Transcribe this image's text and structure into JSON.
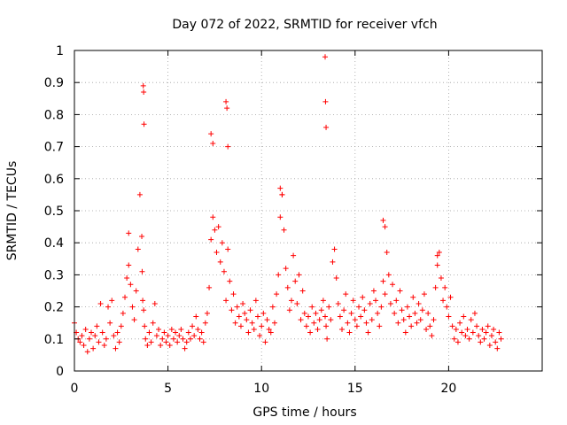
{
  "chart_data": {
    "type": "scatter",
    "title": "Day 072 of 2022, SRMTID for receiver vfch",
    "xlabel": "GPS time / hours",
    "ylabel": "SRMTID / TECUs",
    "xlim": [
      0,
      25
    ],
    "ylim": [
      0,
      1
    ],
    "xticks": [
      0,
      5,
      10,
      15,
      20
    ],
    "xtick_labels": [
      "0",
      "5",
      "10",
      "15",
      "20"
    ],
    "yticks": [
      0,
      0.1,
      0.2,
      0.3,
      0.4,
      0.5,
      0.6,
      0.7,
      0.8,
      0.9,
      1
    ],
    "ytick_labels": [
      "0",
      "0.1",
      "0.2",
      "0.3",
      "0.4",
      "0.5",
      "0.6",
      "0.7",
      "0.8",
      "0.9",
      "1"
    ],
    "grid": true,
    "marker": "+",
    "colors": {
      "points": "#ff0000",
      "grid": "#a0a0a0",
      "axes": "#000000"
    },
    "series": [
      {
        "name": "SRMTID",
        "x": [
          0.0,
          0.1,
          0.2,
          0.3,
          0.4,
          0.5,
          0.6,
          0.7,
          0.8,
          0.9,
          1.0,
          1.1,
          1.2,
          1.3,
          1.4,
          1.5,
          1.6,
          1.7,
          1.8,
          1.9,
          2.0,
          2.1,
          2.2,
          2.3,
          2.4,
          2.5,
          2.6,
          2.7,
          2.8,
          2.9,
          3.0,
          3.1,
          3.2,
          3.3,
          3.4,
          3.5,
          3.6,
          3.62,
          3.65,
          3.7,
          3.75,
          3.8,
          3.9,
          4.0,
          4.1,
          4.2,
          4.3,
          4.4,
          4.5,
          4.6,
          4.7,
          4.8,
          4.9,
          5.0,
          5.1,
          5.2,
          5.3,
          5.4,
          5.5,
          5.6,
          5.7,
          5.8,
          5.9,
          6.0,
          6.1,
          6.2,
          6.3,
          6.4,
          6.5,
          6.6,
          6.7,
          6.8,
          6.9,
          7.0,
          7.1,
          7.2,
          7.3,
          7.4,
          7.5,
          7.6,
          7.7,
          7.8,
          7.9,
          8.0,
          8.1,
          8.2,
          8.3,
          8.4,
          8.5,
          8.6,
          8.7,
          8.8,
          8.9,
          9.0,
          9.1,
          9.2,
          9.3,
          9.4,
          9.5,
          9.6,
          9.7,
          9.8,
          9.9,
          10.0,
          10.1,
          10.2,
          10.3,
          10.4,
          10.5,
          10.6,
          10.7,
          10.8,
          10.9,
          11.0,
          11.1,
          11.2,
          11.3,
          11.4,
          11.5,
          11.6,
          11.7,
          11.8,
          11.9,
          12.0,
          12.1,
          12.2,
          12.3,
          12.4,
          12.5,
          12.6,
          12.7,
          12.8,
          12.9,
          13.0,
          13.1,
          13.2,
          13.3,
          13.4,
          13.45,
          13.5,
          13.6,
          13.7,
          13.8,
          13.9,
          14.0,
          14.1,
          14.2,
          14.3,
          14.4,
          14.5,
          14.6,
          14.7,
          14.8,
          14.9,
          15.0,
          15.1,
          15.2,
          15.3,
          15.4,
          15.5,
          15.6,
          15.7,
          15.8,
          15.9,
          16.0,
          16.1,
          16.2,
          16.3,
          16.4,
          16.5,
          16.6,
          16.7,
          16.8,
          16.9,
          17.0,
          17.1,
          17.2,
          17.3,
          17.4,
          17.5,
          17.6,
          17.7,
          17.8,
          17.9,
          18.0,
          18.1,
          18.2,
          18.3,
          18.4,
          18.5,
          18.6,
          18.7,
          18.8,
          18.9,
          19.0,
          19.1,
          19.2,
          19.3,
          19.4,
          19.5,
          19.6,
          19.7,
          19.8,
          19.9,
          20.0,
          20.1,
          20.2,
          20.3,
          20.4,
          20.5,
          20.6,
          20.7,
          20.8,
          20.9,
          21.0,
          21.1,
          21.2,
          21.3,
          21.4,
          21.5,
          21.6,
          21.7,
          21.8,
          21.9,
          22.0,
          22.1,
          22.2,
          22.3,
          22.4,
          22.5,
          22.6,
          22.7,
          22.8,
          3.68,
          3.7,
          3.72,
          8.1,
          8.15,
          8.2,
          13.4,
          13.42,
          13.45,
          7.3,
          7.4,
          16.5,
          16.6,
          11.0,
          11.1,
          2.9,
          19.4
        ],
        "y": [
          0.15,
          0.12,
          0.1,
          0.09,
          0.11,
          0.08,
          0.13,
          0.06,
          0.1,
          0.12,
          0.07,
          0.11,
          0.14,
          0.09,
          0.21,
          0.12,
          0.08,
          0.1,
          0.2,
          0.15,
          0.22,
          0.11,
          0.07,
          0.12,
          0.09,
          0.14,
          0.18,
          0.23,
          0.29,
          0.33,
          0.27,
          0.2,
          0.16,
          0.25,
          0.38,
          0.55,
          0.42,
          0.31,
          0.22,
          0.19,
          0.14,
          0.1,
          0.08,
          0.12,
          0.09,
          0.15,
          0.21,
          0.11,
          0.13,
          0.08,
          0.1,
          0.12,
          0.09,
          0.11,
          0.08,
          0.13,
          0.1,
          0.12,
          0.09,
          0.11,
          0.13,
          0.1,
          0.07,
          0.09,
          0.12,
          0.1,
          0.14,
          0.11,
          0.17,
          0.13,
          0.1,
          0.12,
          0.09,
          0.15,
          0.18,
          0.26,
          0.41,
          0.48,
          0.44,
          0.37,
          0.45,
          0.34,
          0.4,
          0.31,
          0.22,
          0.38,
          0.28,
          0.19,
          0.24,
          0.15,
          0.2,
          0.17,
          0.14,
          0.21,
          0.18,
          0.16,
          0.12,
          0.19,
          0.15,
          0.13,
          0.22,
          0.17,
          0.11,
          0.14,
          0.18,
          0.09,
          0.16,
          0.13,
          0.12,
          0.2,
          0.15,
          0.24,
          0.3,
          0.48,
          0.55,
          0.44,
          0.32,
          0.26,
          0.19,
          0.22,
          0.36,
          0.28,
          0.21,
          0.3,
          0.16,
          0.25,
          0.18,
          0.14,
          0.17,
          0.12,
          0.2,
          0.15,
          0.18,
          0.13,
          0.16,
          0.19,
          0.22,
          0.17,
          0.14,
          0.1,
          0.2,
          0.16,
          0.34,
          0.38,
          0.29,
          0.21,
          0.17,
          0.13,
          0.19,
          0.24,
          0.15,
          0.12,
          0.18,
          0.22,
          0.16,
          0.14,
          0.2,
          0.17,
          0.23,
          0.19,
          0.15,
          0.12,
          0.21,
          0.16,
          0.25,
          0.22,
          0.18,
          0.14,
          0.2,
          0.28,
          0.24,
          0.37,
          0.3,
          0.21,
          0.27,
          0.18,
          0.22,
          0.15,
          0.25,
          0.19,
          0.16,
          0.12,
          0.2,
          0.17,
          0.14,
          0.23,
          0.18,
          0.15,
          0.21,
          0.16,
          0.19,
          0.24,
          0.13,
          0.18,
          0.14,
          0.11,
          0.16,
          0.26,
          0.33,
          0.37,
          0.29,
          0.22,
          0.26,
          0.2,
          0.17,
          0.23,
          0.14,
          0.1,
          0.13,
          0.09,
          0.15,
          0.12,
          0.17,
          0.11,
          0.13,
          0.1,
          0.16,
          0.12,
          0.18,
          0.14,
          0.11,
          0.09,
          0.13,
          0.1,
          0.12,
          0.14,
          0.08,
          0.11,
          0.13,
          0.09,
          0.07,
          0.12,
          0.1,
          0.89,
          0.87,
          0.77,
          0.84,
          0.82,
          0.7,
          0.98,
          0.84,
          0.76,
          0.74,
          0.71,
          0.47,
          0.45,
          0.57,
          0.55,
          0.43,
          0.36
        ]
      }
    ]
  }
}
